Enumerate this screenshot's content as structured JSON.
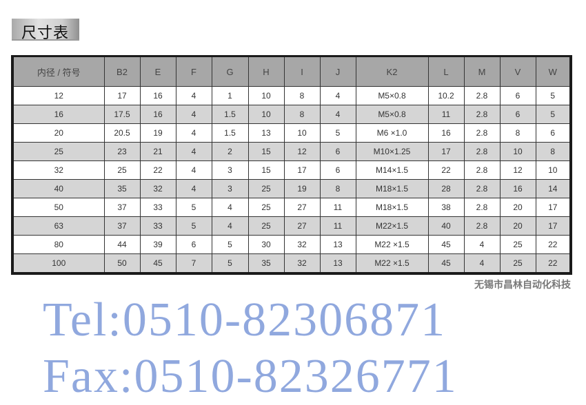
{
  "title": "尺寸表",
  "table": {
    "headers": [
      "内径 / 符号",
      "B2",
      "E",
      "F",
      "G",
      "H",
      "I",
      "J",
      "K2",
      "L",
      "M",
      "V",
      "W"
    ],
    "rows": [
      [
        "12",
        "17",
        "16",
        "4",
        "1",
        "10",
        "8",
        "4",
        "M5×0.8",
        "10.2",
        "2.8",
        "6",
        "5"
      ],
      [
        "16",
        "17.5",
        "16",
        "4",
        "1.5",
        "10",
        "8",
        "4",
        "M5×0.8",
        "11",
        "2.8",
        "6",
        "5"
      ],
      [
        "20",
        "20.5",
        "19",
        "4",
        "1.5",
        "13",
        "10",
        "5",
        "M6 ×1.0",
        "16",
        "2.8",
        "8",
        "6"
      ],
      [
        "25",
        "23",
        "21",
        "4",
        "2",
        "15",
        "12",
        "6",
        "M10×1.25",
        "17",
        "2.8",
        "10",
        "8"
      ],
      [
        "32",
        "25",
        "22",
        "4",
        "3",
        "15",
        "17",
        "6",
        "M14×1.5",
        "22",
        "2.8",
        "12",
        "10"
      ],
      [
        "40",
        "35",
        "32",
        "4",
        "3",
        "25",
        "19",
        "8",
        "M18×1.5",
        "28",
        "2.8",
        "16",
        "14"
      ],
      [
        "50",
        "37",
        "33",
        "5",
        "4",
        "25",
        "27",
        "11",
        "M18×1.5",
        "38",
        "2.8",
        "20",
        "17"
      ],
      [
        "63",
        "37",
        "33",
        "5",
        "4",
        "25",
        "27",
        "11",
        "M22×1.5",
        "40",
        "2.8",
        "20",
        "17"
      ],
      [
        "80",
        "44",
        "39",
        "6",
        "5",
        "30",
        "32",
        "13",
        "M22 ×1.5",
        "45",
        "4",
        "25",
        "22"
      ],
      [
        "100",
        "50",
        "45",
        "7",
        "5",
        "35",
        "32",
        "13",
        "M22 ×1.5",
        "45",
        "4",
        "25",
        "22"
      ]
    ]
  },
  "watermarks": {
    "tel": "Tel:0510-82306871",
    "fax": "Fax:0510-82326771"
  },
  "footer": "无锡市昌林自动化科技"
}
